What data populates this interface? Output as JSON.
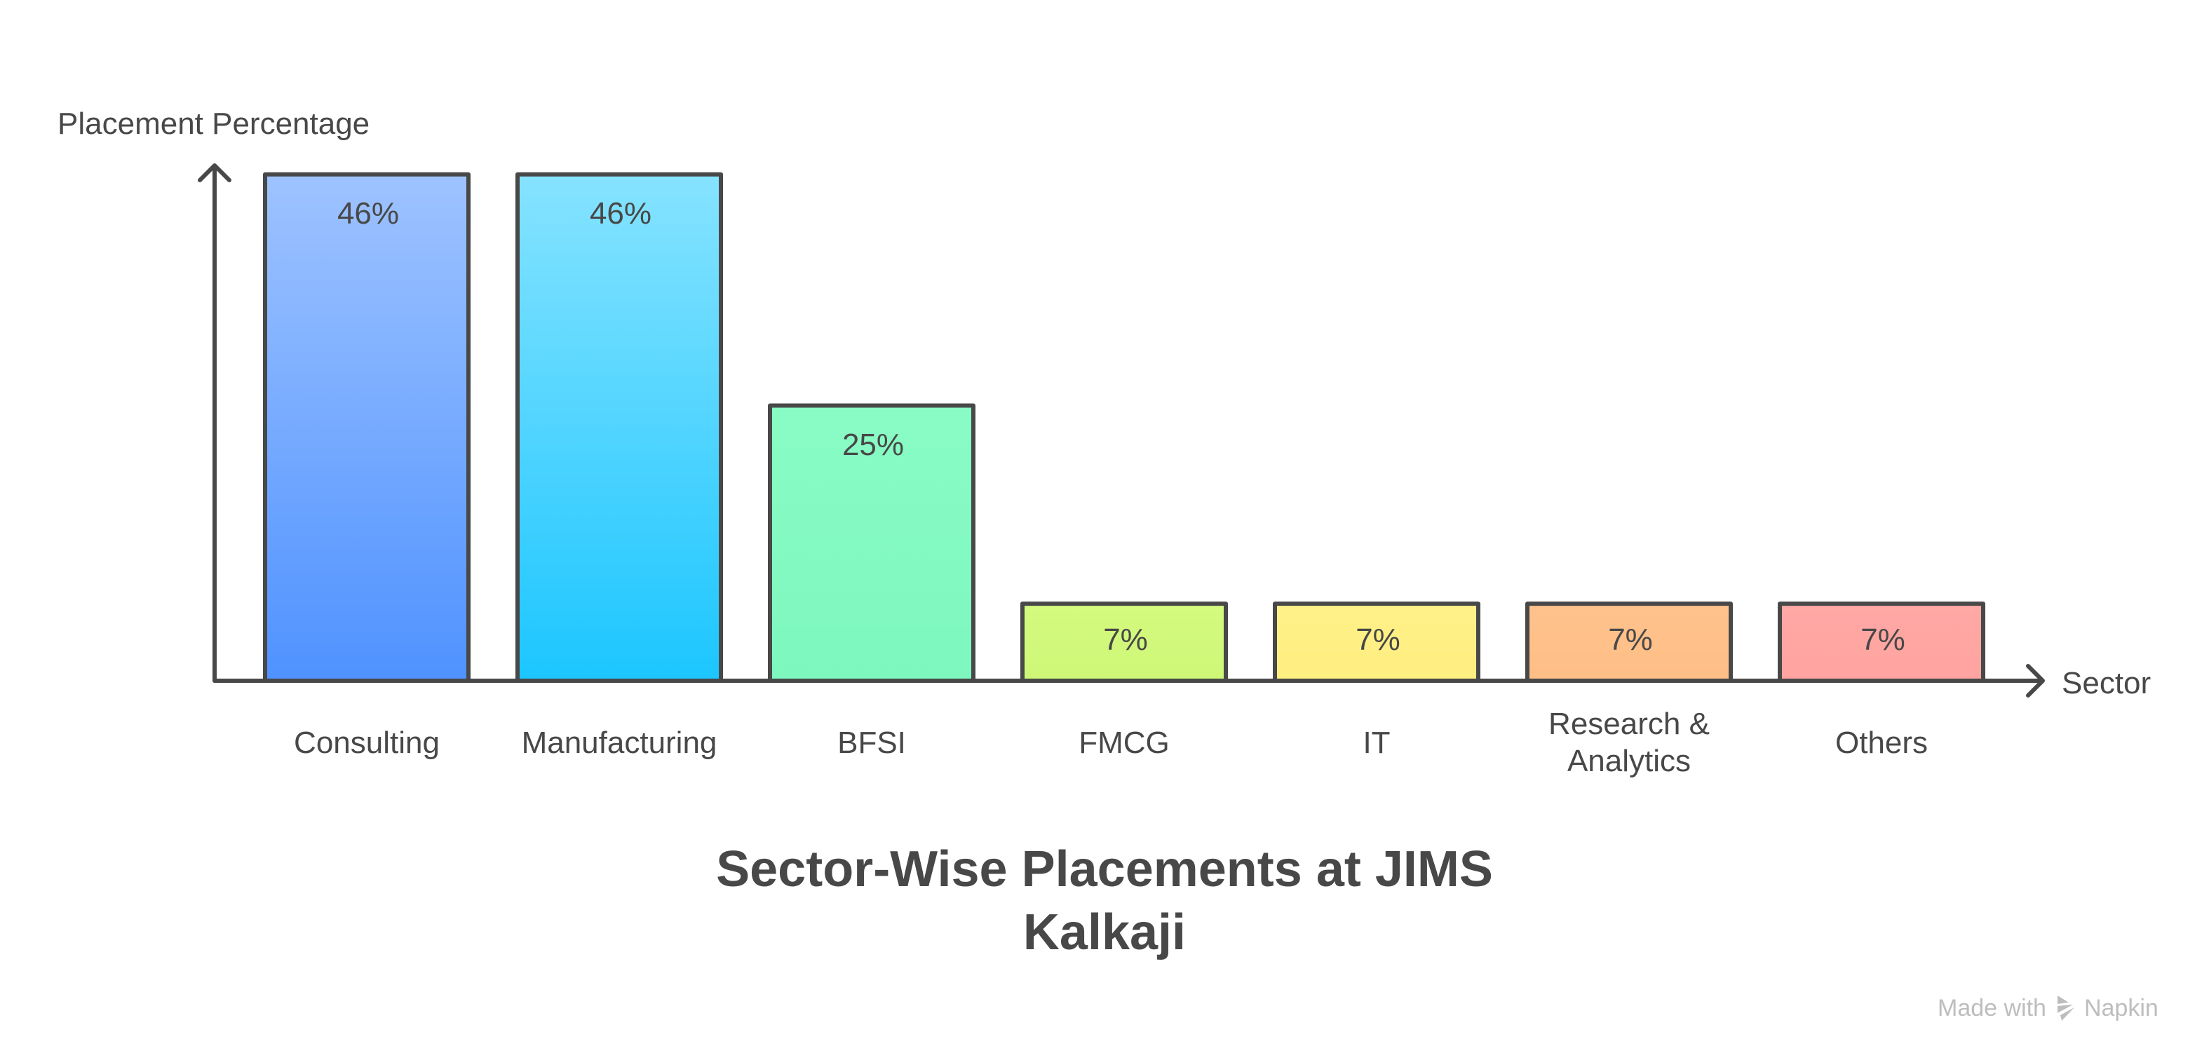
{
  "chart_data": {
    "type": "bar",
    "title": "Sector-Wise Placements at JIMS Kalkaji",
    "title_lines": [
      "Sector-Wise Placements at JIMS",
      "Kalkaji"
    ],
    "xlabel": "Sector",
    "ylabel": "Placement Percentage",
    "categories": [
      "Consulting",
      "Manufacturing",
      "BFSI",
      "FMCG",
      "IT",
      "Research & Analytics",
      "Others"
    ],
    "category_display": [
      "Consulting",
      "Manufacturing",
      "BFSI",
      "FMCG",
      "IT",
      "Research &\nAnalytics",
      "Others"
    ],
    "values": [
      46,
      46,
      25,
      7,
      7,
      7,
      7
    ],
    "value_labels": [
      "46%",
      "46%",
      "25%",
      "7%",
      "7%",
      "7%",
      "7%"
    ],
    "unit": "%",
    "grid": false,
    "legend": null,
    "colors": [
      {
        "top": "#9EC3FF",
        "bottom": "#4F92FF"
      },
      {
        "top": "#86E3FF",
        "bottom": "#1CC6FF"
      },
      {
        "top": "#89FCC5",
        "bottom": "#7DF7BE"
      },
      {
        "top": "#D4FA7E",
        "bottom": "#CEF777"
      },
      {
        "top": "#FFF189",
        "bottom": "#FFEE80"
      },
      {
        "top": "#FFC28D",
        "bottom": "#FFBE86"
      },
      {
        "top": "#FFA8A5",
        "bottom": "#FFA3A0"
      }
    ]
  },
  "axis_color": "#484848",
  "watermark": {
    "prefix": "Made with",
    "brand": "Napkin"
  }
}
